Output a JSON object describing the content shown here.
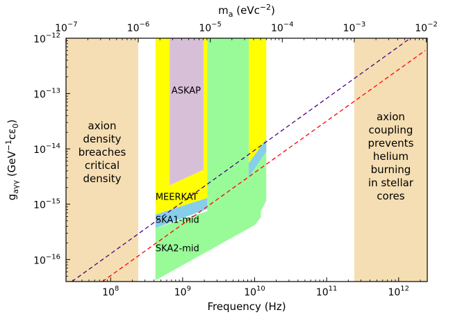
{
  "chart_data": {
    "type": "area",
    "xlabel": "Frequency (Hz)",
    "ylabel": "g_{aγγ} (GeV^{-1}cε_0)",
    "top_xlabel": "m_a (eVc^{-2})",
    "x_scale": "log",
    "y_scale": "log",
    "xlim": [
      24000000.0,
      2500000000000.0
    ],
    "ylim": [
      4e-17,
      1e-12
    ],
    "grid": false,
    "x_ticks": [
      {
        "value": 100000000.0,
        "base": "10",
        "exp": "8"
      },
      {
        "value": 1000000000.0,
        "base": "10",
        "exp": "9"
      },
      {
        "value": 10000000000.0,
        "base": "10",
        "exp": "10"
      },
      {
        "value": 100000000000.0,
        "base": "10",
        "exp": "11"
      },
      {
        "value": 1000000000000.0,
        "base": "10",
        "exp": "12"
      }
    ],
    "y_ticks": [
      {
        "value": 1e-12,
        "base": "10",
        "exp": "−12"
      },
      {
        "value": 1e-13,
        "base": "10",
        "exp": "−13"
      },
      {
        "value": 1e-14,
        "base": "10",
        "exp": "−14"
      },
      {
        "value": 1e-15,
        "base": "10",
        "exp": "−15"
      },
      {
        "value": 1e-16,
        "base": "10",
        "exp": "−16"
      }
    ],
    "top_ticks": [
      {
        "freq": 24200000.0,
        "base": "10",
        "exp": "−7"
      },
      {
        "freq": 242000000.0,
        "base": "10",
        "exp": "−6"
      },
      {
        "freq": 2420000000.0,
        "base": "10",
        "exp": "−5"
      },
      {
        "freq": 24200000000.0,
        "base": "10",
        "exp": "−4"
      },
      {
        "freq": 242000000000.0,
        "base": "10",
        "exp": "−3"
      },
      {
        "freq": 2420000000000.0,
        "base": "10",
        "exp": "−2"
      }
    ],
    "excluded_regions": [
      {
        "name": "axion density breaches critical density",
        "x_range": [
          24000000.0,
          242000000.0
        ],
        "color": "#f5deb3",
        "label_lines": [
          "axion",
          "density",
          "breaches",
          "critical",
          "density"
        ]
      },
      {
        "name": "axion coupling prevents helium burning in stellar cores",
        "x_range": [
          242000000000.0,
          2500000000000.0
        ],
        "color": "#f5deb3",
        "label_lines": [
          "axion",
          "coupling",
          "prevents",
          "helium",
          "burning",
          "in stellar",
          "cores"
        ]
      }
    ],
    "surveys": [
      {
        "name": "MEERKAT",
        "label": "MEERKAT",
        "color": "#ffff00",
        "polygons": [
          [
            [
              420000000.0,
              1e-12
            ],
            [
              660000000.0,
              1e-12
            ],
            [
              660000000.0,
              2.2e-15
            ],
            [
              1950000000.0,
              4.2e-15
            ],
            [
              1950000000.0,
              1e-12
            ],
            [
              2200000000.0,
              1e-12
            ],
            [
              2200000000.0,
              1.3e-15
            ],
            [
              420000000.0,
              6.5e-16
            ]
          ],
          [
            [
              8300000000.0,
              1e-12
            ],
            [
              14500000000.0,
              1e-12
            ],
            [
              14500000000.0,
              1.5e-14
            ],
            [
              8300000000.0,
              5.5e-15
            ]
          ]
        ]
      },
      {
        "name": "ASKAP",
        "label": "ASKAP",
        "color": "#d8bfd8",
        "polygons": [
          [
            [
              660000000.0,
              1e-12
            ],
            [
              1950000000.0,
              1e-12
            ],
            [
              1950000000.0,
              4.2e-15
            ],
            [
              660000000.0,
              2.2e-15
            ]
          ]
        ]
      },
      {
        "name": "SKA2-mid",
        "label": "SKA2-mid",
        "color": "#98fb98",
        "polygons": [
          [
            [
              2200000000.0,
              1e-12
            ],
            [
              8300000000.0,
              1e-12
            ],
            [
              8300000000.0,
              5.5e-15
            ],
            [
              14500000000.0,
              1.5e-14
            ],
            [
              14500000000.0,
              1.15e-15
            ],
            [
              12200000000.0,
              7.5e-16
            ],
            [
              12200000000.0,
              5.8e-16
            ],
            [
              10000000000.0,
              4.2e-16
            ],
            [
              2200000000.0,
              1.4e-16
            ],
            [
              420000000.0,
              4.2e-17
            ],
            [
              420000000.0,
              3.7e-16
            ],
            [
              2200000000.0,
              7.5e-16
            ]
          ]
        ]
      },
      {
        "name": "SKA1-mid",
        "label": "SKA1-mid",
        "color": "#87ceeb",
        "polygons": [
          [
            [
              420000000.0,
              6.5e-16
            ],
            [
              2200000000.0,
              1.3e-15
            ],
            [
              2200000000.0,
              8.2e-16
            ],
            [
              420000000.0,
              3.7e-16
            ]
          ],
          [
            [
              8300000000.0,
              5.5e-15
            ],
            [
              14500000000.0,
              1.5e-14
            ],
            [
              14500000000.0,
              9e-15
            ],
            [
              8300000000.0,
              3.1e-15
            ]
          ]
        ]
      }
    ],
    "survey_labels": [
      {
        "text": "ASKAP",
        "x": 700000000.0,
        "y": 1e-13
      },
      {
        "text": "MEERKAT",
        "x": 420000000.0,
        "y": 1.2e-15
      },
      {
        "text": "SKA1-mid",
        "x": 420000000.0,
        "y": 4.6e-16
      },
      {
        "text": "SKA2-mid",
        "x": 420000000.0,
        "y": 1.4e-16
      }
    ],
    "series": [
      {
        "name": "purple dashed bound",
        "color": "#4b0082",
        "dash": "6,4",
        "points": [
          [
            29000000.0,
            4e-17
          ],
          [
            1450000000000.0,
            1e-12
          ]
        ]
      },
      {
        "name": "red dashed bound",
        "color": "#ff0000",
        "dash": "6,4",
        "points": [
          [
            77000000.0,
            4e-17
          ],
          [
            2340000000000.0,
            6e-13
          ]
        ]
      }
    ]
  }
}
